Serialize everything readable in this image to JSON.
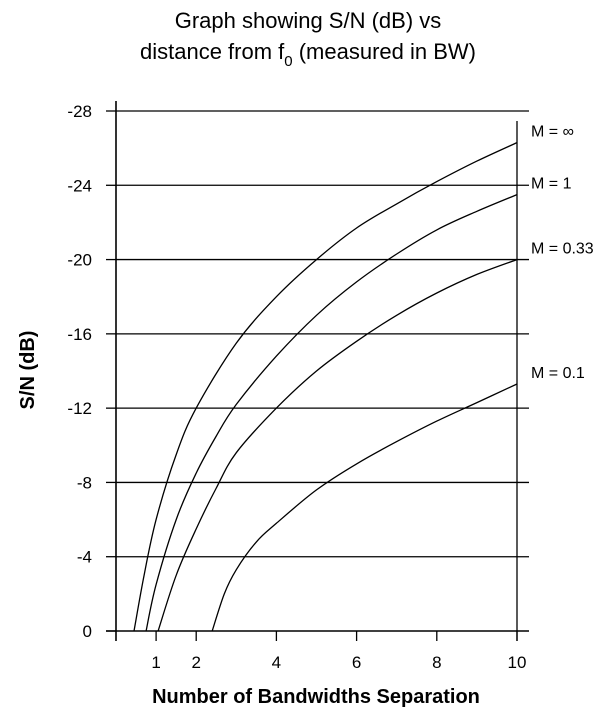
{
  "chart_data": {
    "type": "line",
    "title": "Graph showing S/N (dB) vs",
    "title_line2_prefix": "distance from f",
    "title_line2_subscript": "0",
    "title_line2_suffix": " (measured in BW)",
    "xlabel": "Number of Bandwidths Separation",
    "ylabel": "S/N (dB)",
    "xlim": [
      0,
      10
    ],
    "ylim": [
      0,
      -28
    ],
    "y_axis_reversed": true,
    "grid": "horizontal",
    "x_ticks": [
      {
        "value": 1,
        "label": "1"
      },
      {
        "value": 2,
        "label": "2"
      },
      {
        "value": 4,
        "label": "4"
      },
      {
        "value": 6,
        "label": "6"
      },
      {
        "value": 8,
        "label": "8"
      },
      {
        "value": 10,
        "label": "10"
      }
    ],
    "y_ticks": [
      {
        "value": -28,
        "label": "-28"
      },
      {
        "value": -24,
        "label": "-24"
      },
      {
        "value": -20,
        "label": "-20"
      },
      {
        "value": -16,
        "label": "-16"
      },
      {
        "value": -12,
        "label": "-12"
      },
      {
        "value": -8,
        "label": "-8"
      },
      {
        "value": -4,
        "label": "-4"
      },
      {
        "value": 0,
        "label": "0"
      }
    ],
    "series": [
      {
        "name": "M = ∞",
        "x": [
          0.45,
          0.7,
          1.0,
          1.5,
          2.0,
          3.0,
          4.0,
          5.0,
          6.0,
          7.0,
          8.0,
          9.0,
          10.0
        ],
        "y": [
          0,
          -3.0,
          -6.0,
          -9.5,
          -12.0,
          -15.5,
          -18.0,
          -20.0,
          -21.7,
          -23.0,
          -24.2,
          -25.3,
          -26.3
        ]
      },
      {
        "name": "M = 1",
        "x": [
          0.75,
          1.0,
          1.5,
          2.0,
          2.5,
          3.0,
          4.0,
          5.0,
          6.0,
          7.0,
          8.0,
          9.0,
          10.0
        ],
        "y": [
          0,
          -2.5,
          -6.0,
          -8.5,
          -10.5,
          -12.2,
          -14.8,
          -17.0,
          -18.8,
          -20.3,
          -21.6,
          -22.6,
          -23.5
        ]
      },
      {
        "name": "M = 0.33",
        "x": [
          1.05,
          1.5,
          2.0,
          2.5,
          3.0,
          4.0,
          5.0,
          6.0,
          7.0,
          8.0,
          9.0,
          10.0
        ],
        "y": [
          0,
          -3.0,
          -5.5,
          -7.7,
          -9.6,
          -12.0,
          -14.0,
          -15.6,
          -17.0,
          -18.2,
          -19.2,
          -20.0
        ]
      },
      {
        "name": "M = 0.1",
        "x": [
          2.4,
          2.7,
          3.0,
          3.5,
          4.0,
          5.0,
          6.0,
          7.0,
          8.0,
          9.0,
          10.0
        ],
        "y": [
          0,
          -2.0,
          -3.3,
          -4.8,
          -5.8,
          -7.6,
          -9.0,
          -10.2,
          -11.3,
          -12.3,
          -13.3
        ]
      }
    ]
  }
}
